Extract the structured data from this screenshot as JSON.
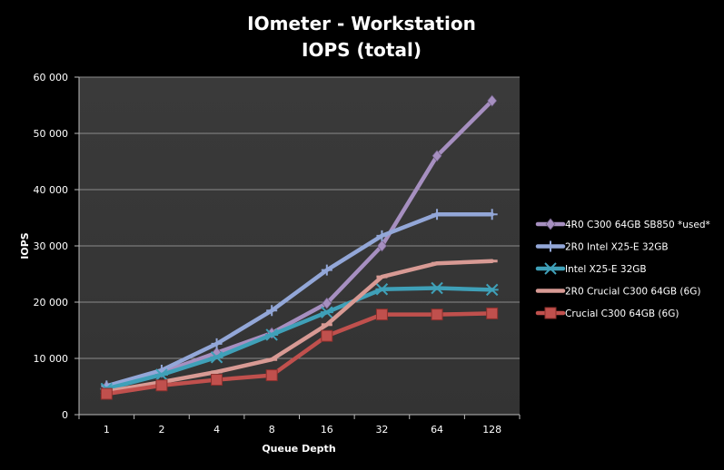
{
  "chart_data": {
    "type": "line",
    "title_line1": "IOmeter - Workstation",
    "title_line2": "IOPS (total)",
    "xlabel": "Queue Depth",
    "ylabel": "IOPS",
    "categories": [
      "1",
      "2",
      "4",
      "8",
      "16",
      "32",
      "64",
      "128"
    ],
    "ylim": [
      0,
      60000
    ],
    "yticks": [
      0,
      10000,
      20000,
      30000,
      40000,
      50000,
      60000
    ],
    "ytick_labels": [
      "0",
      "10 000",
      "20 000",
      "30 000",
      "40 000",
      "50 000",
      "60 000"
    ],
    "grid": true,
    "legend_position": "right",
    "series": [
      {
        "name": "4R0 C300 64GB SB850 *used*",
        "color": "#a68fc0",
        "marker": "diamond",
        "values": [
          5000,
          7500,
          11000,
          14500,
          19800,
          30000,
          46000,
          55800
        ]
      },
      {
        "name": "2R0 Intel X25-E 32GB",
        "color": "#93a7d8",
        "marker": "plus",
        "values": [
          5100,
          7900,
          12600,
          18500,
          25700,
          31800,
          35600,
          35600
        ]
      },
      {
        "name": "Intel X25-E 32GB",
        "color": "#3fa0b8",
        "marker": "star",
        "values": [
          4600,
          7100,
          10200,
          14200,
          18200,
          22300,
          22500,
          22200
        ]
      },
      {
        "name": "2R0 Crucial C300 64GB (6G)",
        "color": "#d89a94",
        "marker": "dash",
        "values": [
          4100,
          5800,
          7600,
          9800,
          16000,
          24500,
          26900,
          27300
        ]
      },
      {
        "name": "Crucial C300 64GB (6G)",
        "color": "#c0504d",
        "marker": "square",
        "values": [
          3700,
          5200,
          6200,
          7000,
          14000,
          17800,
          17800,
          18000
        ]
      }
    ]
  }
}
